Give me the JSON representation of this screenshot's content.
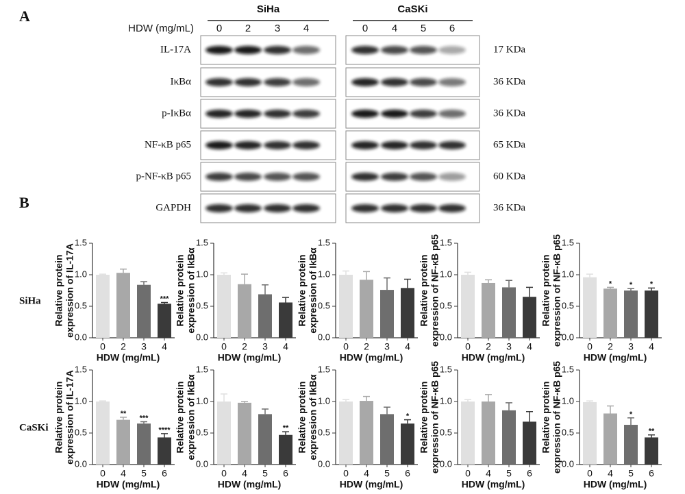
{
  "figure": {
    "panel_labels": [
      "A",
      "B"
    ],
    "cell_lines": [
      "SiHa",
      "CaSKi"
    ],
    "dose_label": "HDW (mg/mL)",
    "lanes": [
      [
        "0",
        "2",
        "3",
        "4"
      ],
      [
        "0",
        "4",
        "5",
        "6"
      ]
    ],
    "proteins": [
      "IL-17A",
      "IκBα",
      "p-IκBα",
      "NF-κB p65",
      "p-NF-κB p65",
      "GAPDH"
    ],
    "sizes": [
      "17 KDa",
      "36 KDa",
      "36 KDa",
      "65 KDa",
      "60 KDa",
      "36 KDa"
    ],
    "row_labels": [
      "SiHa",
      "CaSKi"
    ]
  },
  "chart_data": [
    {
      "type": "bar",
      "y_label": [
        "Relative protein",
        "expression of IL-17A"
      ],
      "x_label": "HDW (mg/mL)",
      "categories": [
        "0",
        "2",
        "3",
        "4"
      ],
      "values": [
        1.0,
        1.03,
        0.84,
        0.54
      ],
      "errors": [
        0.01,
        0.06,
        0.05,
        0.02
      ],
      "significance": [
        null,
        null,
        null,
        "***"
      ],
      "colors": [
        "#e0e0e0",
        "#a8a8a8",
        "#6e6e6e",
        "#3a3a3a"
      ],
      "ylim": [
        0,
        1.5
      ],
      "yticks": [
        {
          "value": 0,
          "label": "0.0"
        },
        {
          "value": 0.5,
          "label": "0.5"
        },
        {
          "value": 1,
          "label": "1.0"
        },
        {
          "value": 1.5,
          "label": "1.5"
        }
      ]
    },
    {
      "type": "bar",
      "y_label": [
        "Relative protein",
        "expression of IkBα"
      ],
      "x_label": "HDW (mg/mL)",
      "categories": [
        "0",
        "2",
        "3",
        "4"
      ],
      "values": [
        1.0,
        0.85,
        0.69,
        0.56
      ],
      "errors": [
        0.03,
        0.16,
        0.15,
        0.08
      ],
      "significance": [
        null,
        null,
        null,
        null
      ],
      "colors": [
        "#e0e0e0",
        "#a8a8a8",
        "#6e6e6e",
        "#3a3a3a"
      ],
      "ylim": [
        0,
        1.5
      ],
      "yticks": [
        {
          "value": 0,
          "label": "0.0"
        },
        {
          "value": 0.5,
          "label": "0.5"
        },
        {
          "value": 1,
          "label": "1.0"
        },
        {
          "value": 1.5,
          "label": "1.5"
        }
      ]
    },
    {
      "type": "bar",
      "y_label": [
        "Relative protein",
        "expression of IkBα"
      ],
      "x_label": "HDW (mg/mL)",
      "categories": [
        "0",
        "2",
        "3",
        "4"
      ],
      "values": [
        1.0,
        0.92,
        0.76,
        0.79
      ],
      "errors": [
        0.06,
        0.13,
        0.19,
        0.14
      ],
      "significance": [
        null,
        null,
        null,
        null
      ],
      "colors": [
        "#e0e0e0",
        "#a8a8a8",
        "#6e6e6e",
        "#3a3a3a"
      ],
      "ylim": [
        0,
        1.5
      ],
      "yticks": [
        {
          "value": 0,
          "label": "0.0"
        },
        {
          "value": 0.5,
          "label": "0.5"
        },
        {
          "value": 1,
          "label": "1.0"
        },
        {
          "value": 1.5,
          "label": "1.5"
        }
      ]
    },
    {
      "type": "bar",
      "y_label": [
        "Relative protein",
        "expression of NF-κB p65"
      ],
      "x_label": "HDW (mg/mL)",
      "categories": [
        "0",
        "2",
        "3",
        "4"
      ],
      "values": [
        1.0,
        0.87,
        0.8,
        0.65
      ],
      "errors": [
        0.04,
        0.05,
        0.11,
        0.15
      ],
      "significance": [
        null,
        null,
        null,
        null
      ],
      "colors": [
        "#e0e0e0",
        "#a8a8a8",
        "#6e6e6e",
        "#3a3a3a"
      ],
      "ylim": [
        0,
        1.5
      ],
      "yticks": [
        {
          "value": 0,
          "label": "0.0"
        },
        {
          "value": 0.5,
          "label": "0.5"
        },
        {
          "value": 1,
          "label": "1.0"
        },
        {
          "value": 1.5,
          "label": "1.5"
        }
      ]
    },
    {
      "type": "bar",
      "y_label": [
        "Relative protein",
        "expression of NF-κB p65"
      ],
      "x_label": "HDW (mg/mL)",
      "categories": [
        "0",
        "2",
        "3",
        "4"
      ],
      "values": [
        0.96,
        0.78,
        0.75,
        0.75
      ],
      "errors": [
        0.05,
        0.02,
        0.03,
        0.04
      ],
      "significance": [
        null,
        "*",
        "*",
        "*"
      ],
      "colors": [
        "#e0e0e0",
        "#a8a8a8",
        "#6e6e6e",
        "#3a3a3a"
      ],
      "ylim": [
        0,
        1.5
      ],
      "yticks": [
        {
          "value": 0,
          "label": "0.0"
        },
        {
          "value": 0.5,
          "label": "0.5"
        },
        {
          "value": 1,
          "label": "1.0"
        },
        {
          "value": 1.5,
          "label": "1.5"
        }
      ]
    },
    {
      "type": "bar",
      "y_label": [
        "Relative protein",
        "expression of IL-17A"
      ],
      "x_label": "HDW (mg/mL)",
      "categories": [
        "0",
        "4",
        "5",
        "6"
      ],
      "values": [
        1.0,
        0.71,
        0.65,
        0.43
      ],
      "errors": [
        0.01,
        0.04,
        0.03,
        0.06
      ],
      "significance": [
        null,
        "**",
        "***",
        "****"
      ],
      "colors": [
        "#e0e0e0",
        "#a8a8a8",
        "#6e6e6e",
        "#3a3a3a"
      ],
      "ylim": [
        0,
        1.5
      ],
      "yticks": [
        {
          "value": 0,
          "label": "0.0"
        },
        {
          "value": 0.5,
          "label": "0.5"
        },
        {
          "value": 1,
          "label": "1.0"
        },
        {
          "value": 1.5,
          "label": "1.5"
        }
      ]
    },
    {
      "type": "bar",
      "y_label": [
        "Relative protein",
        "expression of IkBα"
      ],
      "x_label": "HDW (mg/mL)",
      "categories": [
        "0",
        "4",
        "5",
        "6"
      ],
      "values": [
        1.0,
        0.98,
        0.8,
        0.47
      ],
      "errors": [
        0.12,
        0.02,
        0.08,
        0.05
      ],
      "significance": [
        null,
        null,
        null,
        "**"
      ],
      "colors": [
        "#e0e0e0",
        "#a8a8a8",
        "#6e6e6e",
        "#3a3a3a"
      ],
      "ylim": [
        0,
        1.5
      ],
      "yticks": [
        {
          "value": 0,
          "label": "0.0"
        },
        {
          "value": 0.5,
          "label": "0.5"
        },
        {
          "value": 1,
          "label": "1.0"
        },
        {
          "value": 1.5,
          "label": "1.5"
        }
      ]
    },
    {
      "type": "bar",
      "y_label": [
        "Relative protein",
        "expression of IkBα"
      ],
      "x_label": "HDW (mg/mL)",
      "categories": [
        "0",
        "4",
        "5",
        "6"
      ],
      "values": [
        1.0,
        1.01,
        0.8,
        0.65
      ],
      "errors": [
        0.03,
        0.07,
        0.11,
        0.06
      ],
      "significance": [
        null,
        null,
        null,
        "*"
      ],
      "colors": [
        "#e0e0e0",
        "#a8a8a8",
        "#6e6e6e",
        "#3a3a3a"
      ],
      "ylim": [
        0,
        1.5
      ],
      "yticks": [
        {
          "value": 0,
          "label": "0.0"
        },
        {
          "value": 0.5,
          "label": "0.5"
        },
        {
          "value": 1,
          "label": "1.0"
        },
        {
          "value": 1.5,
          "label": "1.5"
        }
      ]
    },
    {
      "type": "bar",
      "y_label": [
        "Relative protein",
        "expression of NF-κB p65"
      ],
      "x_label": "HDW (mg/mL)",
      "categories": [
        "0",
        "4",
        "5",
        "6"
      ],
      "values": [
        1.0,
        1.0,
        0.86,
        0.68
      ],
      "errors": [
        0.03,
        0.11,
        0.12,
        0.16
      ],
      "significance": [
        null,
        null,
        null,
        null
      ],
      "colors": [
        "#e0e0e0",
        "#a8a8a8",
        "#6e6e6e",
        "#3a3a3a"
      ],
      "ylim": [
        0,
        1.5
      ],
      "yticks": [
        {
          "value": 0,
          "label": "0.0"
        },
        {
          "value": 0.5,
          "label": "0.5"
        },
        {
          "value": 1,
          "label": "1.0"
        },
        {
          "value": 1.5,
          "label": "1.5"
        }
      ]
    },
    {
      "type": "bar",
      "y_label": [
        "Relative protein",
        "expression of NF-κB p65"
      ],
      "x_label": "HDW (mg/mL)",
      "categories": [
        "0",
        "4",
        "5",
        "6"
      ],
      "values": [
        0.99,
        0.81,
        0.63,
        0.43
      ],
      "errors": [
        0.02,
        0.12,
        0.11,
        0.04
      ],
      "significance": [
        null,
        null,
        "*",
        "**"
      ],
      "colors": [
        "#e0e0e0",
        "#a8a8a8",
        "#6e6e6e",
        "#3a3a3a"
      ],
      "ylim": [
        0,
        1.5
      ],
      "yticks": [
        {
          "value": 0,
          "label": "0.0"
        },
        {
          "value": 0.5,
          "label": "0.5"
        },
        {
          "value": 1,
          "label": "1.0"
        },
        {
          "value": 1.5,
          "label": "1.5"
        }
      ]
    }
  ]
}
